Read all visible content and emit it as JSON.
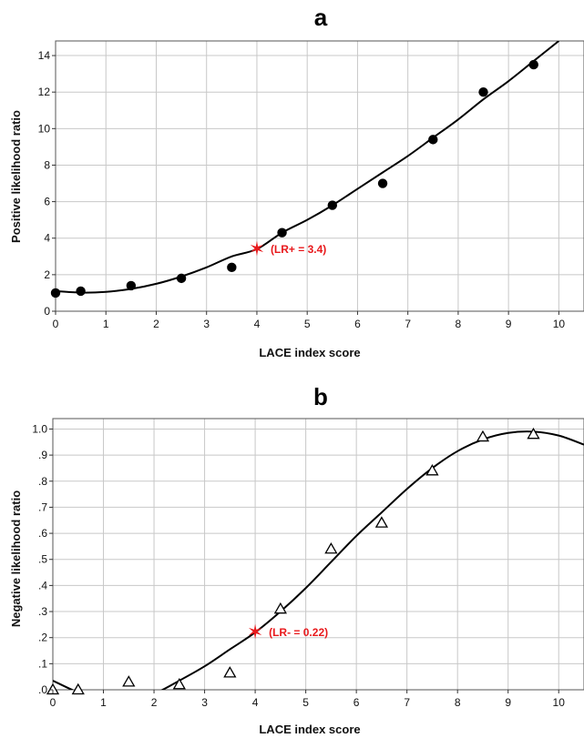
{
  "chart_data": [
    {
      "panel": "a",
      "type": "scatter",
      "xlabel": "LACE index score",
      "ylabel": "Positive likelihood ratio",
      "xlim": [
        0,
        10.5
      ],
      "ylim": [
        0,
        14.8
      ],
      "xticks": [
        0,
        1,
        2,
        3,
        4,
        5,
        6,
        7,
        8,
        9,
        10
      ],
      "xtick_labels": [
        "0",
        "1",
        "2",
        "3",
        "4",
        "5",
        "6",
        "7",
        "8",
        "9",
        "10"
      ],
      "yticks": [
        0,
        2,
        4,
        6,
        8,
        10,
        12,
        14
      ],
      "ytick_labels": [
        "0",
        "2",
        "4",
        "6",
        "8",
        "10",
        "12",
        "14"
      ],
      "grid": true,
      "marker": "filled-circle",
      "points": [
        {
          "x": 0,
          "y": 1.0
        },
        {
          "x": 0.5,
          "y": 1.1
        },
        {
          "x": 1.5,
          "y": 1.4
        },
        {
          "x": 2.5,
          "y": 1.8
        },
        {
          "x": 3.5,
          "y": 2.4
        },
        {
          "x": 4.5,
          "y": 4.3
        },
        {
          "x": 5.5,
          "y": 5.8
        },
        {
          "x": 6.5,
          "y": 7.0
        },
        {
          "x": 7.5,
          "y": 9.4
        },
        {
          "x": 8.5,
          "y": 12.0
        },
        {
          "x": 9.5,
          "y": 13.5
        }
      ],
      "fit_curve": [
        {
          "x": 0,
          "y": 1.1
        },
        {
          "x": 0.5,
          "y": 1.02
        },
        {
          "x": 1,
          "y": 1.06
        },
        {
          "x": 1.5,
          "y": 1.22
        },
        {
          "x": 2,
          "y": 1.5
        },
        {
          "x": 2.5,
          "y": 1.9
        },
        {
          "x": 3,
          "y": 2.4
        },
        {
          "x": 3.5,
          "y": 3.0
        },
        {
          "x": 4,
          "y": 3.4
        },
        {
          "x": 4.5,
          "y": 4.3
        },
        {
          "x": 5,
          "y": 5.0
        },
        {
          "x": 5.5,
          "y": 5.8
        },
        {
          "x": 6,
          "y": 6.7
        },
        {
          "x": 6.5,
          "y": 7.6
        },
        {
          "x": 7,
          "y": 8.5
        },
        {
          "x": 7.5,
          "y": 9.5
        },
        {
          "x": 8,
          "y": 10.5
        },
        {
          "x": 8.5,
          "y": 11.6
        },
        {
          "x": 9,
          "y": 12.6
        },
        {
          "x": 9.5,
          "y": 13.7
        },
        {
          "x": 10,
          "y": 14.8
        }
      ],
      "highlight": {
        "x": 4,
        "y": 3.4,
        "label": "(LR+ = 3.4)",
        "color": "#e8191c"
      }
    },
    {
      "panel": "b",
      "type": "scatter",
      "xlabel": "LACE index score",
      "ylabel": "Negative likelihood ratio",
      "xlim": [
        0,
        10.5
      ],
      "ylim": [
        0,
        1.04
      ],
      "xticks": [
        0,
        1,
        2,
        3,
        4,
        5,
        6,
        7,
        8,
        9,
        10
      ],
      "xtick_labels": [
        "0",
        "1",
        "2",
        "3",
        "4",
        "5",
        "6",
        "7",
        "8",
        "9",
        "10"
      ],
      "yticks": [
        0,
        0.1,
        0.2,
        0.3,
        0.4,
        0.5,
        0.6,
        0.7,
        0.8,
        0.9,
        1.0
      ],
      "ytick_labels": [
        ".0",
        ".1",
        ".2",
        ".3",
        ".4",
        ".5",
        ".6",
        ".7",
        ".8",
        ".9",
        "1.0"
      ],
      "grid": true,
      "marker": "open-triangle",
      "points": [
        {
          "x": 0,
          "y": 0.0
        },
        {
          "x": 0.5,
          "y": 0.0
        },
        {
          "x": 1.5,
          "y": 0.03
        },
        {
          "x": 2.5,
          "y": 0.02
        },
        {
          "x": 3.5,
          "y": 0.065
        },
        {
          "x": 4.5,
          "y": 0.31
        },
        {
          "x": 5.5,
          "y": 0.54
        },
        {
          "x": 6.5,
          "y": 0.64
        },
        {
          "x": 7.5,
          "y": 0.84
        },
        {
          "x": 8.5,
          "y": 0.97
        },
        {
          "x": 9.5,
          "y": 0.98
        }
      ],
      "fit_curve": [
        {
          "x": 0,
          "y": 0.035
        },
        {
          "x": 0.5,
          "y": -0.01
        },
        {
          "x": 1,
          "y": -0.04
        },
        {
          "x": 1.5,
          "y": -0.04
        },
        {
          "x": 2,
          "y": -0.015
        },
        {
          "x": 2.5,
          "y": 0.035
        },
        {
          "x": 3,
          "y": 0.09
        },
        {
          "x": 3.5,
          "y": 0.155
        },
        {
          "x": 4,
          "y": 0.22
        },
        {
          "x": 4.5,
          "y": 0.3
        },
        {
          "x": 5,
          "y": 0.39
        },
        {
          "x": 5.5,
          "y": 0.49
        },
        {
          "x": 6,
          "y": 0.59
        },
        {
          "x": 6.5,
          "y": 0.68
        },
        {
          "x": 7,
          "y": 0.77
        },
        {
          "x": 7.5,
          "y": 0.85
        },
        {
          "x": 8,
          "y": 0.915
        },
        {
          "x": 8.5,
          "y": 0.96
        },
        {
          "x": 9,
          "y": 0.985
        },
        {
          "x": 9.5,
          "y": 0.99
        },
        {
          "x": 10,
          "y": 0.975
        },
        {
          "x": 10.5,
          "y": 0.94
        }
      ],
      "highlight": {
        "x": 4,
        "y": 0.22,
        "label": "(LR- = 0.22)",
        "color": "#e8191c"
      }
    }
  ]
}
